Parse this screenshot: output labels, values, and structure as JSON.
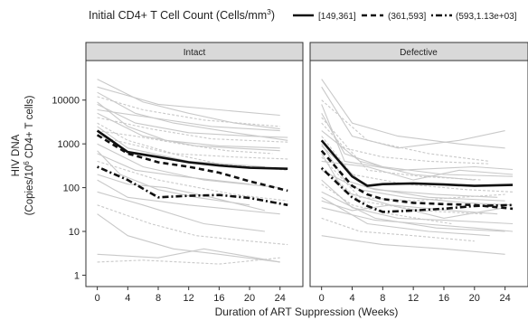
{
  "chart_data": {
    "type": "line",
    "legend": {
      "title_main": "Initial CD4+ T Cell Count (Cells/mm",
      "title_sup": "3",
      "title_end": ")",
      "entries": [
        {
          "label": "[149,361]",
          "dash": "solid"
        },
        {
          "label": "(361,593]",
          "dash": "dashed"
        },
        {
          "label": "(593,1.13e+03]",
          "dash": "dotdash"
        }
      ],
      "placement": "top"
    },
    "xlabel": "Duration of ART Suppression (Weeks)",
    "ylabel_line1": "HIV DNA",
    "ylabel_line2_pre": "(Copies/10",
    "ylabel_line2_sup": "6",
    "ylabel_line2_post": " CD4+ T cells)",
    "x_ticks": [
      0,
      4,
      8,
      12,
      16,
      20,
      24
    ],
    "x_range": [
      -1.5,
      27
    ],
    "y_ticks": [
      {
        "value": 1,
        "label": "1"
      },
      {
        "value": 10,
        "label": "10"
      },
      {
        "value": 100,
        "label": "100"
      },
      {
        "value": 1000,
        "label": "1000"
      },
      {
        "value": 10000,
        "label": "10000"
      }
    ],
    "y_scale": "log10",
    "y_range": [
      0.55,
      80000
    ],
    "panels": [
      {
        "title": "Intact",
        "series": [
          {
            "group": "[149,361]",
            "x": [
              0,
              4,
              8,
              12,
              16,
              20,
              25
            ],
            "y": [
              2000,
              650,
              500,
              380,
              320,
              285,
              270
            ]
          },
          {
            "group": "(361,593]",
            "x": [
              0,
              4,
              8,
              12,
              16,
              20,
              25
            ],
            "y": [
              1600,
              600,
              380,
              300,
              220,
              140,
              85
            ]
          },
          {
            "group": "(593,1.13e+03]",
            "x": [
              0,
              4,
              8,
              12,
              16,
              20,
              25
            ],
            "y": [
              300,
              150,
              60,
              65,
              68,
              58,
              40
            ]
          }
        ],
        "individual_lines": [
          {
            "x": [
              0,
              8,
              16,
              24
            ],
            "y": [
              20000,
              8000,
              6000,
              4500
            ]
          },
          {
            "x": [
              0,
              6,
              14,
              24
            ],
            "y": [
              12000,
              6000,
              3500,
              2500
            ]
          },
          {
            "x": [
              0,
              5,
              12,
              20,
              25
            ],
            "y": [
              8000,
              3000,
              1800,
              1500,
              1400
            ]
          },
          {
            "x": [
              0,
              6,
              13,
              24
            ],
            "y": [
              5000,
              1500,
              900,
              700
            ]
          },
          {
            "x": [
              0,
              4,
              10,
              18,
              25
            ],
            "y": [
              3000,
              1200,
              600,
              500,
              450
            ]
          },
          {
            "x": [
              0,
              7,
              15,
              24
            ],
            "y": [
              6000,
              4000,
              2500,
              2000
            ]
          },
          {
            "x": [
              0,
              4,
              12,
              22
            ],
            "y": [
              2500,
              800,
              400,
              300
            ]
          },
          {
            "x": [
              0,
              8,
              16,
              25
            ],
            "y": [
              1500,
              700,
              350,
              250
            ]
          },
          {
            "x": [
              0,
              6,
              14,
              24
            ],
            "y": [
              1000,
              300,
              150,
              100
            ]
          },
          {
            "x": [
              0,
              5,
              11,
              20
            ],
            "y": [
              600,
              250,
              180,
              120
            ]
          },
          {
            "x": [
              0,
              8,
              18,
              25
            ],
            "y": [
              400,
              150,
              70,
              50
            ]
          },
          {
            "x": [
              0,
              4,
              12,
              24
            ],
            "y": [
              150,
              60,
              40,
              25
            ]
          },
          {
            "x": [
              0,
              6,
              14,
              22
            ],
            "y": [
              80,
              40,
              15,
              10
            ]
          },
          {
            "x": [
              0,
              7,
              13,
              20,
              25
            ],
            "y": [
              40,
              15,
              8,
              6,
              5
            ]
          },
          {
            "x": [
              0,
              4,
              10,
              16,
              24
            ],
            "y": [
              25,
              8,
              4,
              3,
              2
            ]
          },
          {
            "x": [
              0,
              8,
              14,
              24
            ],
            "y": [
              3,
              2.5,
              4,
              2
            ]
          },
          {
            "x": [
              0,
              6,
              16,
              24
            ],
            "y": [
              2,
              2.2,
              1.8,
              2.5
            ]
          },
          {
            "x": [
              0,
              5,
              10,
              18,
              25
            ],
            "y": [
              15000,
              5000,
              3000,
              1800,
              1200
            ]
          },
          {
            "x": [
              0,
              4,
              9,
              16,
              24
            ],
            "y": [
              9000,
              2500,
              1200,
              900,
              800
            ]
          },
          {
            "x": [
              0,
              7,
              15,
              25
            ],
            "y": [
              4000,
              2200,
              1300,
              1100
            ]
          },
          {
            "x": [
              0,
              3,
              8,
              13,
              20
            ],
            "y": [
              700,
              200,
              90,
              60,
              40
            ]
          },
          {
            "x": [
              0,
              6,
              12,
              18,
              24
            ],
            "y": [
              30000,
              9000,
              5000,
              3000,
              2200
            ]
          },
          {
            "x": [
              0,
              5,
              11,
              17,
              23
            ],
            "y": [
              2000,
              1500,
              1000,
              700,
              600
            ]
          },
          {
            "x": [
              0,
              4,
              9,
              15,
              22
            ],
            "y": [
              200,
              120,
              100,
              60,
              30
            ]
          }
        ]
      },
      {
        "title": "Defective",
        "series": [
          {
            "group": "[149,361]",
            "x": [
              0,
              4,
              6,
              8,
              12,
              16,
              20,
              25
            ],
            "y": [
              1200,
              180,
              110,
              120,
              125,
              118,
              110,
              115
            ]
          },
          {
            "group": "(361,593]",
            "x": [
              0,
              4,
              6,
              8,
              12,
              16,
              20,
              25
            ],
            "y": [
              700,
              110,
              70,
              55,
              45,
              42,
              40,
              33
            ]
          },
          {
            "group": "(593,1.13e+03]",
            "x": [
              0,
              4,
              6,
              8,
              12,
              16,
              20,
              25
            ],
            "y": [
              280,
              60,
              38,
              28,
              30,
              33,
              38,
              40
            ]
          }
        ],
        "individual_lines": [
          {
            "x": [
              0,
              4,
              10,
              18,
              24
            ],
            "y": [
              30000,
              3000,
              1500,
              1000,
              800
            ]
          },
          {
            "x": [
              0,
              6,
              14,
              22
            ],
            "y": [
              10000,
              1200,
              600,
              400
            ]
          },
          {
            "x": [
              0,
              3,
              8,
              16,
              25
            ],
            "y": [
              5000,
              600,
              300,
              200,
              180
            ]
          },
          {
            "x": [
              0,
              5,
              12,
              20
            ],
            "y": [
              2000,
              400,
              200,
              150
            ]
          },
          {
            "x": [
              0,
              4,
              11,
              19,
              25
            ],
            "y": [
              1500,
              200,
              120,
              90,
              80
            ]
          },
          {
            "x": [
              0,
              6,
              14,
              24
            ],
            "y": [
              900,
              100,
              60,
              50
            ]
          },
          {
            "x": [
              0,
              3,
              9,
              17,
              23
            ],
            "y": [
              600,
              80,
              40,
              30,
              25
            ]
          },
          {
            "x": [
              0,
              5,
              13,
              21
            ],
            "y": [
              300,
              50,
              30,
              25
            ]
          },
          {
            "x": [
              0,
              4,
              10,
              16,
              25
            ],
            "y": [
              150,
              35,
              20,
              18,
              15
            ]
          },
          {
            "x": [
              0,
              7,
              15,
              24
            ],
            "y": [
              80,
              20,
              12,
              10
            ]
          },
          {
            "x": [
              0,
              3,
              8,
              14,
              22
            ],
            "y": [
              3000,
              800,
              500,
              400,
              350
            ]
          },
          {
            "x": [
              0,
              6,
              12,
              18,
              25
            ],
            "y": [
              400,
              300,
              150,
              250,
              200
            ]
          },
          {
            "x": [
              0,
              4,
              9,
              16,
              24
            ],
            "y": [
              50,
              30,
              40,
              20,
              35
            ]
          },
          {
            "x": [
              0,
              5,
              12,
              20
            ],
            "y": [
              20,
              10,
              8,
              6
            ]
          },
          {
            "x": [
              0,
              8,
              16,
              24
            ],
            "y": [
              8,
              5,
              4,
              3
            ]
          },
          {
            "x": [
              0,
              4,
              10,
              18,
              24
            ],
            "y": [
              20000,
              1500,
              800,
              1200,
              2000
            ]
          },
          {
            "x": [
              0,
              6,
              13,
              21
            ],
            "y": [
              4000,
              250,
              180,
              150
            ]
          },
          {
            "x": [
              0,
              3,
              7,
              15,
              23
            ],
            "y": [
              1000,
              150,
              90,
              70,
              60
            ]
          },
          {
            "x": [
              0,
              5,
              11,
              19,
              25
            ],
            "y": [
              250,
              90,
              60,
              45,
              40
            ]
          },
          {
            "x": [
              0,
              4,
              9,
              17
            ],
            "y": [
              120,
              40,
              25,
              15
            ]
          },
          {
            "x": [
              0,
              6,
              14,
              22
            ],
            "y": [
              60,
              15,
              10,
              8
            ]
          },
          {
            "x": [
              0,
              3,
              10,
              20,
              25
            ],
            "y": [
              8000,
              400,
              250,
              300,
              260
            ]
          },
          {
            "x": [
              0,
              5,
              12,
              18,
              24
            ],
            "y": [
              500,
              60,
              50,
              60,
              70
            ]
          },
          {
            "x": [
              0,
              7,
              13,
              20,
              25
            ],
            "y": [
              35,
              18,
              15,
              12,
              10
            ]
          }
        ]
      }
    ],
    "colors": {
      "individual": "#c9c9c9",
      "mean": "#111111",
      "strip": "#d9d9d9"
    }
  }
}
